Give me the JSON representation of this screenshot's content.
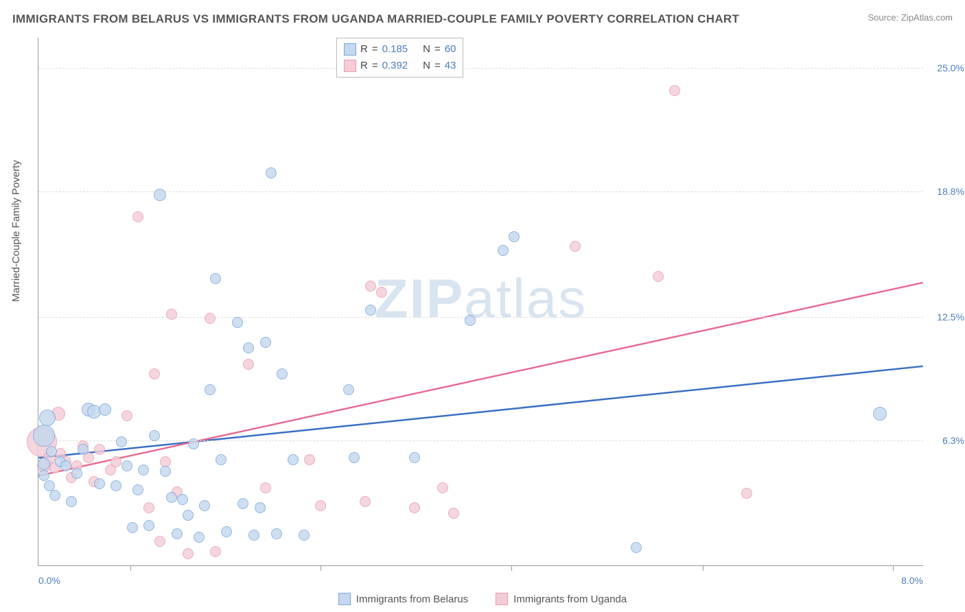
{
  "header": {
    "title": "IMMIGRANTS FROM BELARUS VS IMMIGRANTS FROM UGANDA MARRIED-COUPLE FAMILY POVERTY CORRELATION CHART",
    "source": "Source: ZipAtlas.com"
  },
  "axes": {
    "y_label": "Married-Couple Family Poverty",
    "x_min": 0.0,
    "x_max": 8.0,
    "y_min": 0.0,
    "y_max": 26.5,
    "x_label_min": "0.0%",
    "x_label_max": "8.0%",
    "y_ticks": [
      {
        "v": 6.3,
        "label": "6.3%"
      },
      {
        "v": 12.5,
        "label": "12.5%"
      },
      {
        "v": 18.8,
        "label": "18.8%"
      },
      {
        "v": 25.0,
        "label": "25.0%"
      }
    ],
    "x_tick_positions": [
      0.83,
      2.55,
      4.27,
      6.0,
      7.72
    ],
    "label_color": "#4a7ebb",
    "axis_text_color": "#555555",
    "grid_color": "#dddddd"
  },
  "watermark": {
    "bold": "ZIP",
    "light": "atlas",
    "color": "#d8e4f0"
  },
  "series_a": {
    "name": "Immigrants from Belarus",
    "fill": "#c4d8ef",
    "stroke": "#7aa7d9",
    "line_color": "#3a6fc4",
    "R": "0.185",
    "N": "60",
    "trend": {
      "x1": 0.0,
      "y1": 5.4,
      "x2": 8.0,
      "y2": 10.0
    },
    "points": [
      {
        "x": 0.05,
        "y": 6.5,
        "r": 16
      },
      {
        "x": 0.05,
        "y": 5.1,
        "r": 9
      },
      {
        "x": 0.05,
        "y": 4.5,
        "r": 8
      },
      {
        "x": 0.08,
        "y": 7.4,
        "r": 12
      },
      {
        "x": 0.1,
        "y": 4.0,
        "r": 8
      },
      {
        "x": 0.12,
        "y": 5.7,
        "r": 8
      },
      {
        "x": 0.15,
        "y": 3.5,
        "r": 8
      },
      {
        "x": 0.2,
        "y": 5.2,
        "r": 8
      },
      {
        "x": 0.25,
        "y": 5.0,
        "r": 8
      },
      {
        "x": 0.3,
        "y": 3.2,
        "r": 8
      },
      {
        "x": 0.35,
        "y": 4.6,
        "r": 8
      },
      {
        "x": 0.4,
        "y": 5.8,
        "r": 8
      },
      {
        "x": 0.45,
        "y": 7.8,
        "r": 10
      },
      {
        "x": 0.5,
        "y": 7.7,
        "r": 10
      },
      {
        "x": 0.55,
        "y": 4.1,
        "r": 8
      },
      {
        "x": 0.6,
        "y": 7.8,
        "r": 9
      },
      {
        "x": 0.7,
        "y": 4.0,
        "r": 8
      },
      {
        "x": 0.75,
        "y": 6.2,
        "r": 8
      },
      {
        "x": 0.8,
        "y": 5.0,
        "r": 8
      },
      {
        "x": 0.85,
        "y": 1.9,
        "r": 8
      },
      {
        "x": 0.9,
        "y": 3.8,
        "r": 8
      },
      {
        "x": 0.95,
        "y": 4.8,
        "r": 8
      },
      {
        "x": 1.0,
        "y": 2.0,
        "r": 8
      },
      {
        "x": 1.05,
        "y": 6.5,
        "r": 8
      },
      {
        "x": 1.1,
        "y": 18.6,
        "r": 9
      },
      {
        "x": 1.15,
        "y": 4.7,
        "r": 8
      },
      {
        "x": 1.2,
        "y": 3.4,
        "r": 8
      },
      {
        "x": 1.25,
        "y": 1.6,
        "r": 8
      },
      {
        "x": 1.3,
        "y": 3.3,
        "r": 8
      },
      {
        "x": 1.35,
        "y": 2.5,
        "r": 8
      },
      {
        "x": 1.4,
        "y": 6.1,
        "r": 8
      },
      {
        "x": 1.45,
        "y": 1.4,
        "r": 8
      },
      {
        "x": 1.5,
        "y": 3.0,
        "r": 8
      },
      {
        "x": 1.55,
        "y": 8.8,
        "r": 8
      },
      {
        "x": 1.6,
        "y": 14.4,
        "r": 8
      },
      {
        "x": 1.65,
        "y": 5.3,
        "r": 8
      },
      {
        "x": 1.7,
        "y": 1.7,
        "r": 8
      },
      {
        "x": 1.8,
        "y": 12.2,
        "r": 8
      },
      {
        "x": 1.85,
        "y": 3.1,
        "r": 8
      },
      {
        "x": 1.9,
        "y": 10.9,
        "r": 8
      },
      {
        "x": 1.95,
        "y": 1.5,
        "r": 8
      },
      {
        "x": 2.0,
        "y": 2.9,
        "r": 8
      },
      {
        "x": 2.05,
        "y": 11.2,
        "r": 8
      },
      {
        "x": 2.1,
        "y": 19.7,
        "r": 8
      },
      {
        "x": 2.15,
        "y": 1.6,
        "r": 8
      },
      {
        "x": 2.2,
        "y": 9.6,
        "r": 8
      },
      {
        "x": 2.3,
        "y": 5.3,
        "r": 8
      },
      {
        "x": 2.4,
        "y": 1.5,
        "r": 8
      },
      {
        "x": 2.8,
        "y": 8.8,
        "r": 8
      },
      {
        "x": 2.85,
        "y": 5.4,
        "r": 8
      },
      {
        "x": 3.0,
        "y": 12.8,
        "r": 8
      },
      {
        "x": 3.4,
        "y": 5.4,
        "r": 8
      },
      {
        "x": 3.9,
        "y": 12.3,
        "r": 8
      },
      {
        "x": 4.2,
        "y": 15.8,
        "r": 8
      },
      {
        "x": 4.3,
        "y": 16.5,
        "r": 8
      },
      {
        "x": 5.4,
        "y": 0.9,
        "r": 8
      },
      {
        "x": 7.6,
        "y": 7.6,
        "r": 10
      }
    ]
  },
  "series_b": {
    "name": "Immigrants from Uganda",
    "fill": "#f4cdd7",
    "stroke": "#e89bb0",
    "line_color": "#e76a8f",
    "R": "0.392",
    "N": "43",
    "trend": {
      "x1": 0.0,
      "y1": 4.5,
      "x2": 8.0,
      "y2": 14.2
    },
    "points": [
      {
        "x": 0.03,
        "y": 6.2,
        "r": 22
      },
      {
        "x": 0.05,
        "y": 5.0,
        "r": 10
      },
      {
        "x": 0.1,
        "y": 5.4,
        "r": 9
      },
      {
        "x": 0.15,
        "y": 4.9,
        "r": 8
      },
      {
        "x": 0.18,
        "y": 7.6,
        "r": 10
      },
      {
        "x": 0.2,
        "y": 5.6,
        "r": 8
      },
      {
        "x": 0.25,
        "y": 5.2,
        "r": 8
      },
      {
        "x": 0.3,
        "y": 4.4,
        "r": 8
      },
      {
        "x": 0.35,
        "y": 5.0,
        "r": 8
      },
      {
        "x": 0.4,
        "y": 6.0,
        "r": 8
      },
      {
        "x": 0.45,
        "y": 5.4,
        "r": 8
      },
      {
        "x": 0.5,
        "y": 4.2,
        "r": 8
      },
      {
        "x": 0.55,
        "y": 5.8,
        "r": 8
      },
      {
        "x": 0.65,
        "y": 4.8,
        "r": 8
      },
      {
        "x": 0.7,
        "y": 5.2,
        "r": 8
      },
      {
        "x": 0.8,
        "y": 7.5,
        "r": 8
      },
      {
        "x": 0.9,
        "y": 17.5,
        "r": 8
      },
      {
        "x": 1.0,
        "y": 2.9,
        "r": 8
      },
      {
        "x": 1.05,
        "y": 9.6,
        "r": 8
      },
      {
        "x": 1.1,
        "y": 1.2,
        "r": 8
      },
      {
        "x": 1.15,
        "y": 5.2,
        "r": 8
      },
      {
        "x": 1.2,
        "y": 12.6,
        "r": 8
      },
      {
        "x": 1.25,
        "y": 3.7,
        "r": 8
      },
      {
        "x": 1.35,
        "y": 0.6,
        "r": 8
      },
      {
        "x": 1.55,
        "y": 12.4,
        "r": 8
      },
      {
        "x": 1.6,
        "y": 0.7,
        "r": 8
      },
      {
        "x": 1.9,
        "y": 10.1,
        "r": 8
      },
      {
        "x": 2.05,
        "y": 3.9,
        "r": 8
      },
      {
        "x": 2.45,
        "y": 5.3,
        "r": 8
      },
      {
        "x": 2.55,
        "y": 3.0,
        "r": 8
      },
      {
        "x": 2.95,
        "y": 3.2,
        "r": 8
      },
      {
        "x": 3.0,
        "y": 14.0,
        "r": 8
      },
      {
        "x": 3.1,
        "y": 13.7,
        "r": 8
      },
      {
        "x": 3.4,
        "y": 2.9,
        "r": 8
      },
      {
        "x": 3.65,
        "y": 3.9,
        "r": 8
      },
      {
        "x": 3.75,
        "y": 2.6,
        "r": 8
      },
      {
        "x": 4.85,
        "y": 16.0,
        "r": 8
      },
      {
        "x": 5.6,
        "y": 14.5,
        "r": 8
      },
      {
        "x": 5.75,
        "y": 23.8,
        "r": 8
      },
      {
        "x": 6.4,
        "y": 3.6,
        "r": 8
      }
    ]
  },
  "bottom_legend": {
    "a": "Immigrants from Belarus",
    "b": "Immigrants from Uganda"
  },
  "stats_labels": {
    "R": "R",
    "N": "N",
    "eq": "="
  }
}
